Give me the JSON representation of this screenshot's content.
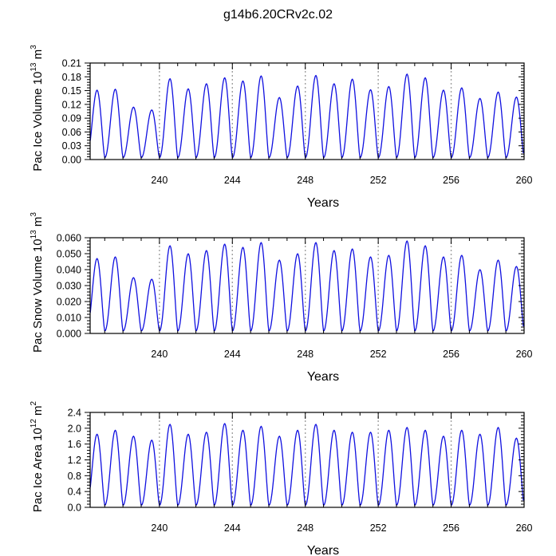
{
  "title": "g14b6.20CRv2c.02",
  "colors": {
    "line": "#1010e0",
    "frame": "#000000",
    "guide": "#a0a0a0"
  },
  "chart_data": [
    {
      "type": "line",
      "ylabel": {
        "base": "Pac Ice Volume 10",
        "exp": "13",
        "unit": " m",
        "unit_exp": "3"
      },
      "xlabel": "Years",
      "xlim": [
        236.2,
        260
      ],
      "ylim": [
        0,
        0.21
      ],
      "xticks": [
        240,
        244,
        248,
        252,
        256,
        260
      ],
      "xtick_labels": [
        "240",
        "244",
        "248",
        "252",
        "256",
        "260"
      ],
      "yticks": [
        0,
        0.03,
        0.06,
        0.09,
        0.12,
        0.15,
        0.18,
        0.21
      ],
      "ytick_labels": [
        "0.00",
        "0.03",
        "0.06",
        "0.09",
        "0.12",
        "0.15",
        "0.18",
        "0.21"
      ],
      "guides": [
        240,
        244,
        248,
        252,
        256
      ],
      "seasonal_peaks": [
        0.151,
        0.153,
        0.114,
        0.108,
        0.176,
        0.154,
        0.165,
        0.178,
        0.171,
        0.182,
        0.135,
        0.16,
        0.183,
        0.165,
        0.175,
        0.152,
        0.159,
        0.186,
        0.178,
        0.151,
        0.156,
        0.133,
        0.147,
        0.136
      ],
      "seasonal_min": 0.004
    },
    {
      "type": "line",
      "ylabel": {
        "base": "Pac Snow Volume 10",
        "exp": "13",
        "unit": " m",
        "unit_exp": "3"
      },
      "xlabel": "Years",
      "xlim": [
        236.2,
        260
      ],
      "ylim": [
        0,
        0.06
      ],
      "xticks": [
        240,
        244,
        248,
        252,
        256,
        260
      ],
      "xtick_labels": [
        "240",
        "244",
        "248",
        "252",
        "256",
        "260"
      ],
      "yticks": [
        0,
        0.01,
        0.02,
        0.03,
        0.04,
        0.05,
        0.06
      ],
      "ytick_labels": [
        "0.000",
        "0.010",
        "0.020",
        "0.030",
        "0.040",
        "0.050",
        "0.060"
      ],
      "guides": [
        240,
        244,
        248,
        252,
        256
      ],
      "seasonal_peaks": [
        0.047,
        0.048,
        0.035,
        0.034,
        0.055,
        0.05,
        0.052,
        0.056,
        0.054,
        0.057,
        0.046,
        0.05,
        0.057,
        0.052,
        0.053,
        0.048,
        0.049,
        0.058,
        0.055,
        0.048,
        0.049,
        0.04,
        0.046,
        0.042
      ],
      "seasonal_min": 0.0015
    },
    {
      "type": "line",
      "ylabel": {
        "base": "Pac Ice Area 10",
        "exp": "12",
        "unit": " m",
        "unit_exp": "2"
      },
      "xlabel": "Years",
      "xlim": [
        236.2,
        260
      ],
      "ylim": [
        0,
        2.4
      ],
      "xticks": [
        240,
        244,
        248,
        252,
        256,
        260
      ],
      "xtick_labels": [
        "240",
        "244",
        "248",
        "252",
        "256",
        "260"
      ],
      "yticks": [
        0,
        0.4,
        0.8,
        1.2,
        1.6,
        2.0,
        2.4
      ],
      "ytick_labels": [
        "0.0",
        "0.4",
        "0.8",
        "1.2",
        "1.6",
        "2.0",
        "2.4"
      ],
      "guides": [
        240,
        244,
        248,
        252,
        256
      ],
      "seasonal_peaks": [
        1.85,
        1.95,
        1.8,
        1.7,
        2.1,
        1.85,
        1.9,
        2.12,
        1.95,
        2.05,
        1.8,
        1.95,
        2.1,
        1.95,
        1.9,
        1.9,
        1.95,
        2.02,
        1.95,
        1.8,
        1.95,
        1.85,
        2.02,
        1.75
      ],
      "seasonal_min": 0.05
    }
  ]
}
